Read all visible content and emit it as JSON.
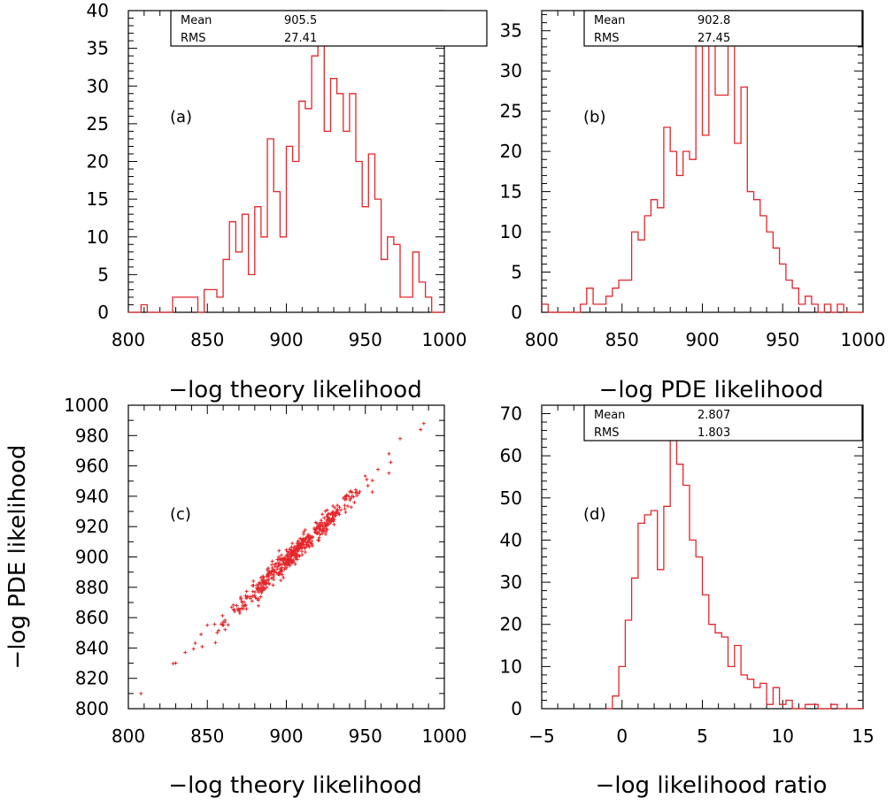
{
  "chart_data": [
    {
      "id": "a",
      "type": "histogram",
      "panel_label": "(a)",
      "xlabel": "−log theory likelihood",
      "ylabel": "",
      "xlim": [
        800,
        1000
      ],
      "ylim": [
        0,
        40
      ],
      "xticks": [
        800,
        850,
        900,
        950,
        1000
      ],
      "yticks": [
        0,
        5,
        10,
        15,
        20,
        25,
        30,
        35,
        40
      ],
      "stats": {
        "mean_label": "Mean",
        "mean": "905.5",
        "rms_label": "RMS",
        "rms": "27.41"
      },
      "bin_start": 800,
      "bin_width": 4,
      "counts": [
        0,
        0,
        1,
        0,
        0,
        0,
        0,
        2,
        2,
        2,
        2,
        0,
        3,
        3,
        2,
        7,
        12,
        8,
        13,
        5,
        14,
        10,
        23,
        16,
        10,
        22,
        20,
        28,
        27,
        34,
        36,
        24,
        31,
        29,
        24,
        29,
        20,
        14,
        21,
        15,
        7,
        10,
        9,
        2,
        2,
        8,
        4,
        2,
        0,
        0,
        1,
        0,
        1,
        1,
        0,
        1,
        0,
        0,
        0,
        0
      ]
    },
    {
      "id": "b",
      "type": "histogram",
      "panel_label": "(b)",
      "xlabel": "−log PDE likelihood",
      "ylabel": "",
      "xlim": [
        800,
        1000
      ],
      "ylim": [
        0,
        37.5
      ],
      "xticks": [
        800,
        850,
        900,
        950,
        1000
      ],
      "yticks": [
        0,
        5,
        10,
        15,
        20,
        25,
        30,
        35
      ],
      "stats": {
        "mean_label": "Mean",
        "mean": "902.8",
        "rms_label": "RMS",
        "rms": "27.45"
      },
      "bin_start": 800,
      "bin_width": 4,
      "counts": [
        1,
        0,
        0,
        0,
        0,
        0,
        1,
        3,
        1,
        1,
        2,
        3,
        4,
        4,
        10,
        9,
        12,
        14,
        13,
        23,
        20,
        17,
        20,
        19,
        35,
        22,
        34,
        27,
        27,
        34,
        21,
        28,
        15,
        14,
        12,
        10,
        8,
        6,
        4,
        3,
        1,
        2,
        1,
        0,
        1,
        0,
        1,
        0,
        0,
        0,
        0,
        0,
        0,
        0,
        0,
        0,
        0,
        0,
        0,
        0
      ]
    },
    {
      "id": "c",
      "type": "scatter",
      "panel_label": "(c)",
      "xlabel": "−log theory likelihood",
      "ylabel": "−log PDE likelihood",
      "xlim": [
        800,
        1000
      ],
      "ylim": [
        800,
        1000
      ],
      "xticks": [
        800,
        850,
        900,
        950,
        1000
      ],
      "yticks": [
        800,
        820,
        840,
        860,
        880,
        900,
        920,
        940,
        960,
        980,
        1000
      ],
      "trend": {
        "slope": 1.0,
        "offset": -2.7,
        "x_min": 827,
        "x_max": 975,
        "spread": 3.5
      },
      "outliers": [
        {
          "x": 808,
          "y": 810
        },
        {
          "x": 830,
          "y": 830
        },
        {
          "x": 836,
          "y": 837
        },
        {
          "x": 846,
          "y": 849
        },
        {
          "x": 850,
          "y": 855
        },
        {
          "x": 965,
          "y": 968
        },
        {
          "x": 972,
          "y": 978
        },
        {
          "x": 985,
          "y": 984
        },
        {
          "x": 987,
          "y": 988
        }
      ],
      "n_points": 480
    },
    {
      "id": "d",
      "type": "histogram",
      "panel_label": "(d)",
      "xlabel": "−log likelihood ratio",
      "ylabel": "",
      "xlim": [
        -5,
        15
      ],
      "ylim": [
        0,
        72
      ],
      "xticks": [
        -5,
        0,
        5,
        10,
        15
      ],
      "yticks": [
        0,
        10,
        20,
        30,
        40,
        50,
        60,
        70
      ],
      "stats": {
        "mean_label": "Mean",
        "mean": "2.807",
        "rms_label": "RMS",
        "rms": "1.803"
      },
      "bin_start": -1,
      "bin_width": 0.4,
      "counts": [
        0,
        3,
        10,
        21,
        31,
        44,
        46,
        47,
        33,
        48,
        65,
        58,
        53,
        40,
        36,
        27,
        20,
        18,
        17,
        10,
        15,
        8,
        7,
        5,
        6,
        1,
        5,
        1,
        2,
        0,
        0,
        1,
        1,
        0,
        0,
        1,
        0,
        0,
        0,
        0,
        0,
        0
      ]
    }
  ],
  "style": {
    "line_color": "#e4262b",
    "axis_color": "#000000",
    "background": "#ffffff"
  }
}
